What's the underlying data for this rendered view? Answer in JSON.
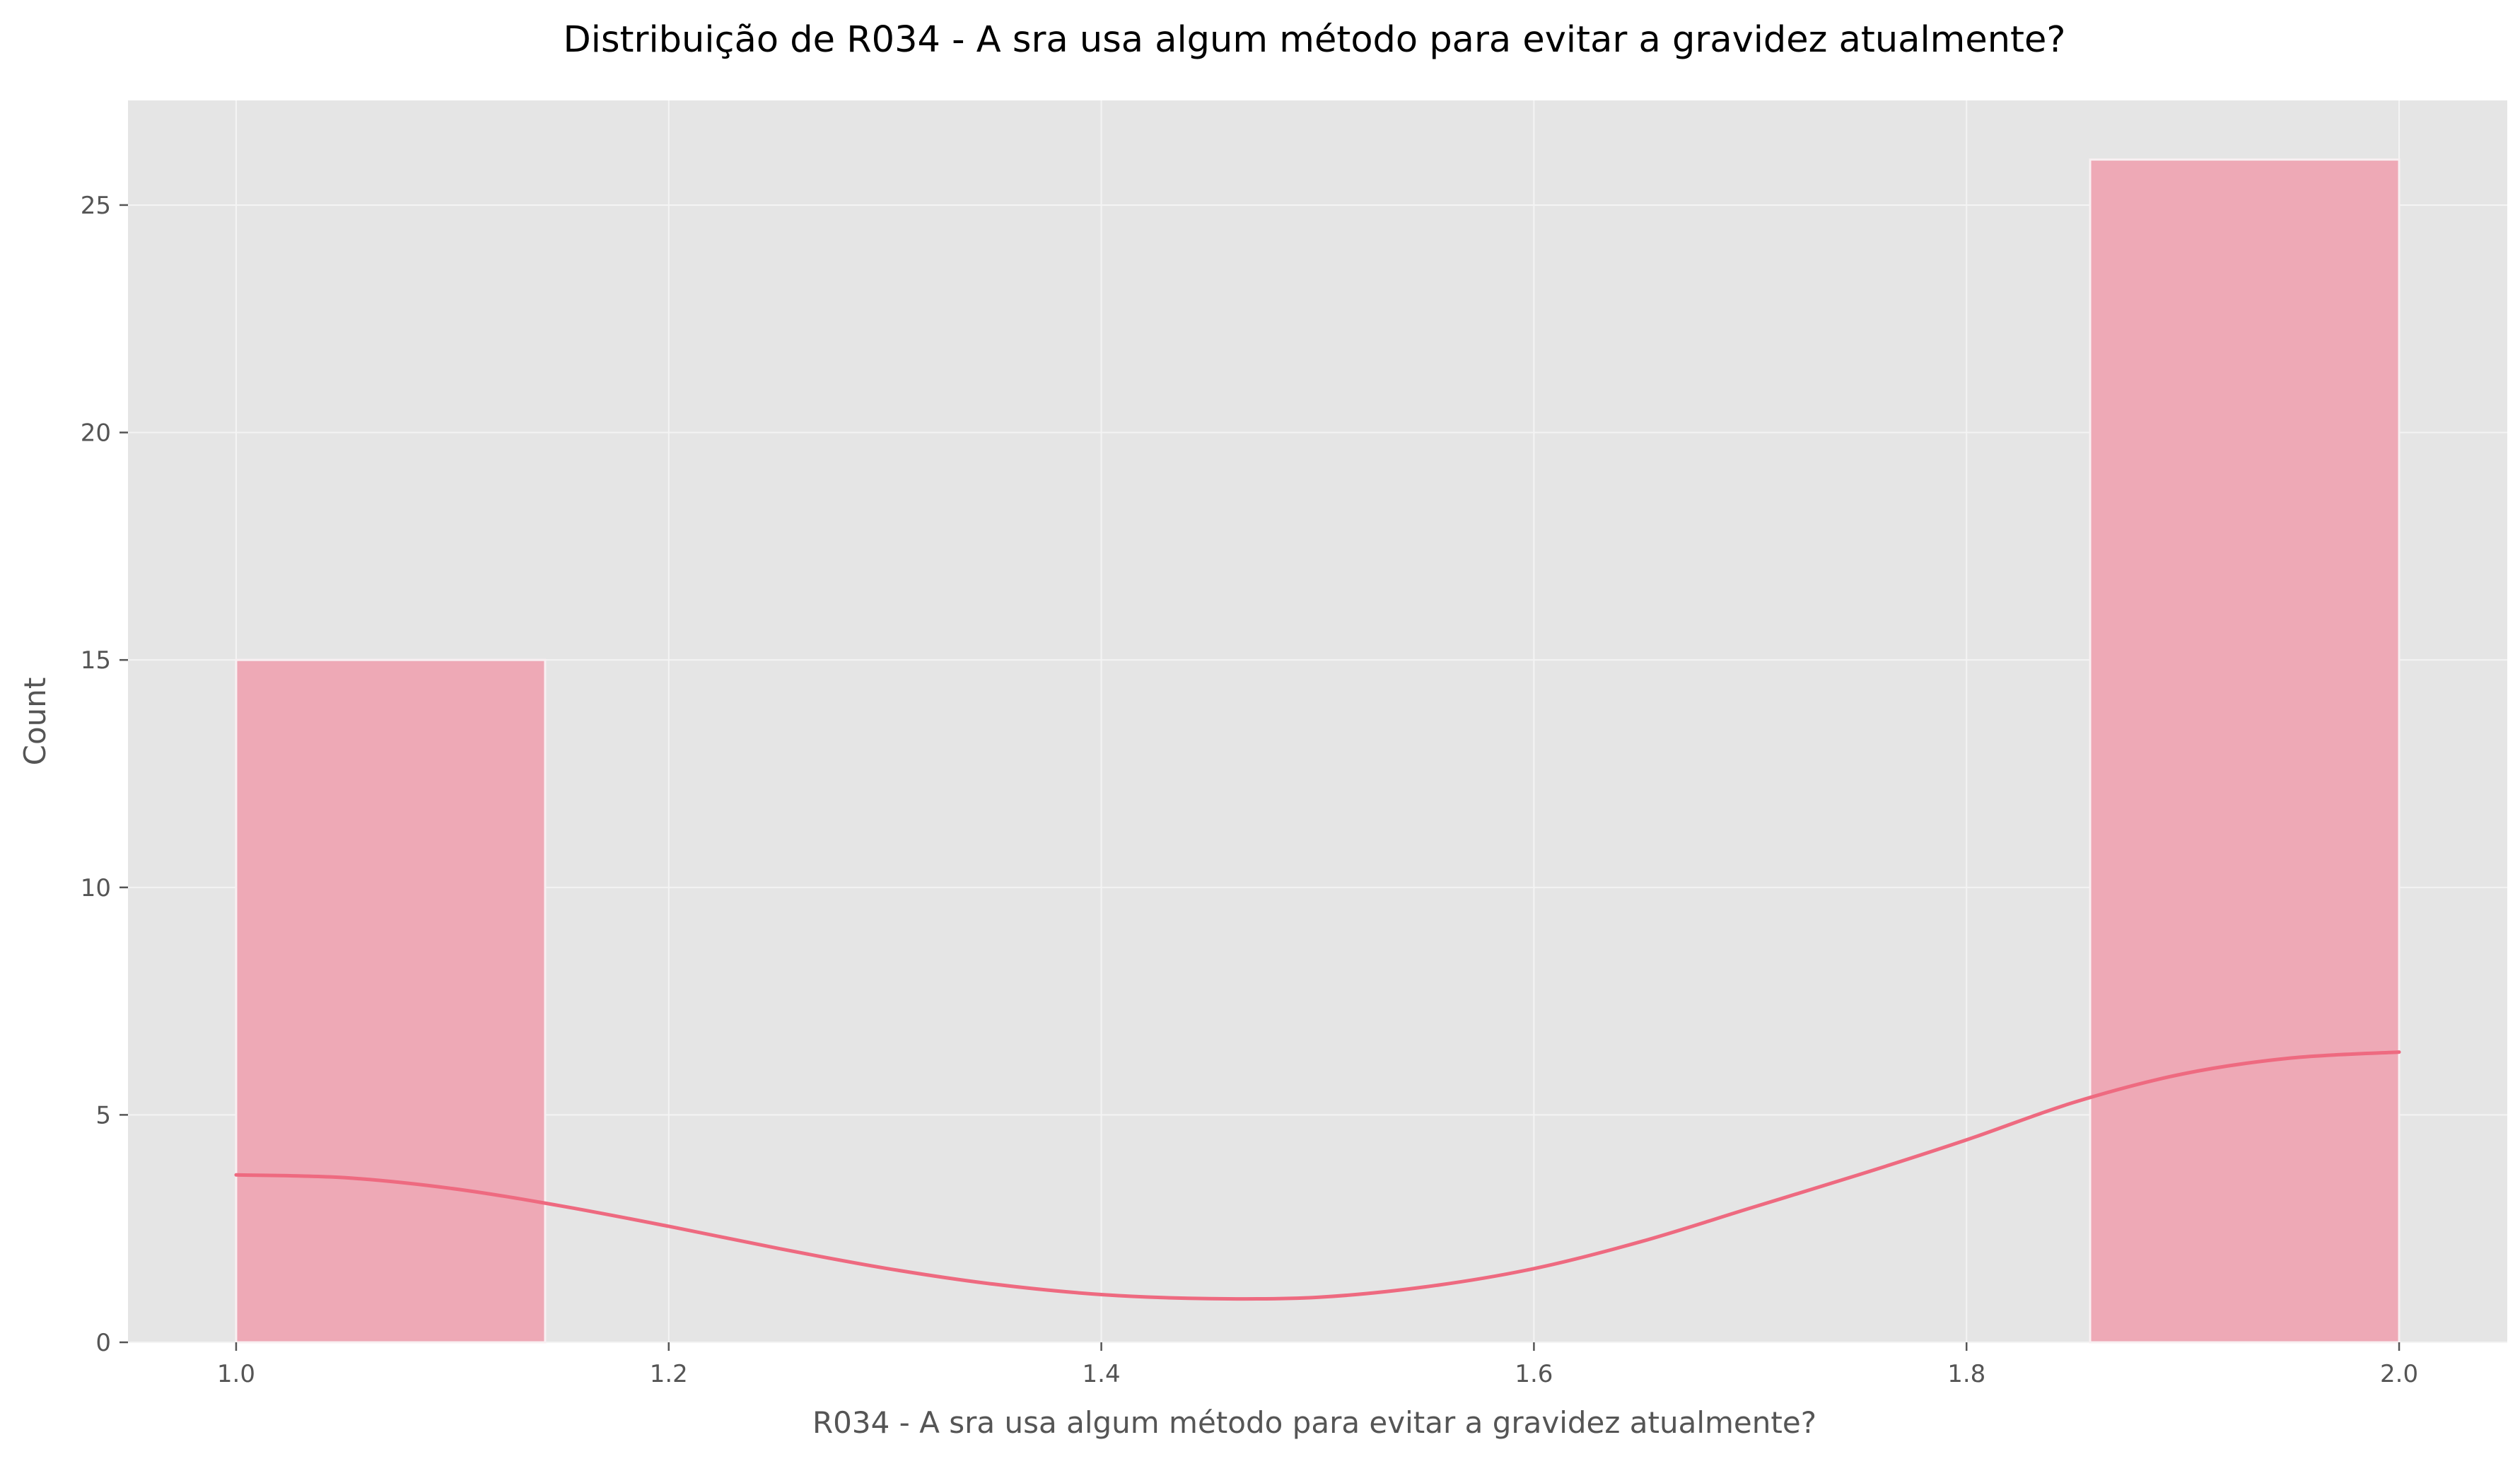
{
  "chart_data": {
    "type": "bar",
    "title": "Distribuição de R034 - A sra usa algum método para evitar a gravidez atualmente?",
    "xlabel": "R034 - A sra usa algum método para evitar a gravidez atualmente?",
    "ylabel": "Count",
    "xlim": [
      0.95,
      2.05
    ],
    "ylim": [
      0,
      27.3
    ],
    "x_ticks": [
      1.0,
      1.2,
      1.4,
      1.6,
      1.8,
      2.0
    ],
    "x_tick_labels": [
      "1.0",
      "1.2",
      "1.4",
      "1.6",
      "1.8",
      "2.0"
    ],
    "y_ticks": [
      0,
      5,
      10,
      15,
      20,
      25
    ],
    "y_tick_labels": [
      "0",
      "5",
      "10",
      "15",
      "20",
      "25"
    ],
    "grid": true,
    "bins": [
      {
        "x0": 1.0,
        "x1": 1.142857,
        "count": 15
      },
      {
        "x0": 1.857143,
        "x1": 2.0,
        "count": 26
      }
    ],
    "kde": {
      "x": [
        1.0,
        1.05,
        1.1,
        1.15,
        1.2,
        1.25,
        1.3,
        1.35,
        1.4,
        1.45,
        1.5,
        1.55,
        1.6,
        1.65,
        1.7,
        1.75,
        1.8,
        1.85,
        1.9,
        1.95,
        2.0
      ],
      "y": [
        3.68,
        3.62,
        3.38,
        3.0,
        2.55,
        2.07,
        1.63,
        1.28,
        1.05,
        0.96,
        0.99,
        1.22,
        1.62,
        2.22,
        2.95,
        3.68,
        4.45,
        5.28,
        5.9,
        6.25,
        6.38
      ]
    },
    "colors": {
      "bar_fill": "#eea9b6",
      "bar_edge": "#f8f0f2",
      "kde_line": "#ee6a80",
      "plot_background": "#e5e5e5",
      "grid": "#f4f4f4"
    }
  }
}
